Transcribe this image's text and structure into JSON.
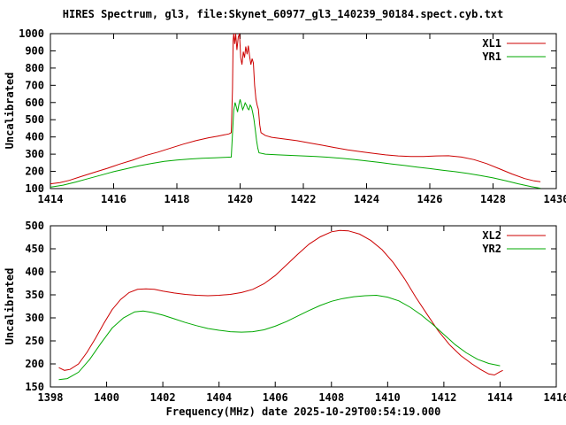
{
  "title": "HIRES Spectrum, gl3, file:Skynet_60977_gl3_140239_90184.spect.cyb.txt",
  "xlabel": "Frequency(MHz) date 2025-10-29T00:54:19.000",
  "chart_data": [
    {
      "type": "line",
      "ylabel": "Uncalibrated",
      "xlim": [
        1414,
        1430
      ],
      "ylim": [
        100,
        1000
      ],
      "xticks": [
        1414,
        1416,
        1418,
        1420,
        1422,
        1424,
        1426,
        1428,
        1430
      ],
      "yticks": [
        100,
        200,
        300,
        400,
        500,
        600,
        700,
        800,
        900,
        1000
      ],
      "grid": false,
      "legend_position": "top-right",
      "series": [
        {
          "name": "XL1",
          "color": "#cc0000",
          "points": [
            [
              1414.0,
              128
            ],
            [
              1414.3,
              135
            ],
            [
              1414.6,
              148
            ],
            [
              1415.0,
              172
            ],
            [
              1415.4,
              195
            ],
            [
              1415.8,
              218
            ],
            [
              1416.2,
              243
            ],
            [
              1416.6,
              265
            ],
            [
              1417.0,
              292
            ],
            [
              1417.4,
              312
            ],
            [
              1417.8,
              335
            ],
            [
              1418.2,
              358
            ],
            [
              1418.6,
              378
            ],
            [
              1419.0,
              395
            ],
            [
              1419.3,
              405
            ],
            [
              1419.5,
              412
            ],
            [
              1419.65,
              418
            ],
            [
              1419.72,
              425
            ],
            [
              1419.76,
              680
            ],
            [
              1419.78,
              960
            ],
            [
              1419.8,
              1000
            ],
            [
              1419.83,
              940
            ],
            [
              1419.86,
              1000
            ],
            [
              1419.9,
              905
            ],
            [
              1419.94,
              980
            ],
            [
              1419.98,
              1000
            ],
            [
              1420.02,
              860
            ],
            [
              1420.06,
              820
            ],
            [
              1420.1,
              895
            ],
            [
              1420.14,
              860
            ],
            [
              1420.18,
              925
            ],
            [
              1420.22,
              880
            ],
            [
              1420.26,
              930
            ],
            [
              1420.3,
              870
            ],
            [
              1420.34,
              820
            ],
            [
              1420.38,
              855
            ],
            [
              1420.42,
              830
            ],
            [
              1420.46,
              700
            ],
            [
              1420.5,
              620
            ],
            [
              1420.54,
              585
            ],
            [
              1420.58,
              560
            ],
            [
              1420.62,
              470
            ],
            [
              1420.66,
              425
            ],
            [
              1420.8,
              408
            ],
            [
              1421.0,
              398
            ],
            [
              1421.4,
              388
            ],
            [
              1421.8,
              378
            ],
            [
              1422.2,
              365
            ],
            [
              1422.6,
              352
            ],
            [
              1423.0,
              338
            ],
            [
              1423.4,
              325
            ],
            [
              1423.8,
              315
            ],
            [
              1424.2,
              305
            ],
            [
              1424.6,
              296
            ],
            [
              1425.0,
              290
            ],
            [
              1425.4,
              286
            ],
            [
              1425.8,
              286
            ],
            [
              1426.2,
              290
            ],
            [
              1426.6,
              291
            ],
            [
              1427.0,
              283
            ],
            [
              1427.4,
              268
            ],
            [
              1427.8,
              245
            ],
            [
              1428.2,
              215
            ],
            [
              1428.6,
              185
            ],
            [
              1429.0,
              158
            ],
            [
              1429.3,
              145
            ],
            [
              1429.5,
              140
            ]
          ]
        },
        {
          "name": "YR1",
          "color": "#00a800",
          "points": [
            [
              1414.0,
              108
            ],
            [
              1414.4,
              120
            ],
            [
              1414.8,
              138
            ],
            [
              1415.2,
              158
            ],
            [
              1415.6,
              178
            ],
            [
              1416.0,
              198
            ],
            [
              1416.4,
              215
            ],
            [
              1416.8,
              232
            ],
            [
              1417.2,
              246
            ],
            [
              1417.6,
              258
            ],
            [
              1418.0,
              266
            ],
            [
              1418.4,
              272
            ],
            [
              1418.8,
              276
            ],
            [
              1419.2,
              279
            ],
            [
              1419.5,
              281
            ],
            [
              1419.72,
              283
            ],
            [
              1419.76,
              420
            ],
            [
              1419.8,
              555
            ],
            [
              1419.84,
              600
            ],
            [
              1419.88,
              575
            ],
            [
              1419.92,
              545
            ],
            [
              1419.96,
              588
            ],
            [
              1420.0,
              618
            ],
            [
              1420.04,
              590
            ],
            [
              1420.08,
              558
            ],
            [
              1420.12,
              575
            ],
            [
              1420.16,
              598
            ],
            [
              1420.2,
              585
            ],
            [
              1420.24,
              565
            ],
            [
              1420.28,
              558
            ],
            [
              1420.32,
              585
            ],
            [
              1420.36,
              572
            ],
            [
              1420.4,
              540
            ],
            [
              1420.44,
              500
            ],
            [
              1420.48,
              440
            ],
            [
              1420.52,
              380
            ],
            [
              1420.56,
              335
            ],
            [
              1420.6,
              308
            ],
            [
              1420.8,
              300
            ],
            [
              1421.2,
              296
            ],
            [
              1421.6,
              293
            ],
            [
              1422.0,
              290
            ],
            [
              1422.4,
              286
            ],
            [
              1422.8,
              282
            ],
            [
              1423.2,
              276
            ],
            [
              1423.6,
              269
            ],
            [
              1424.0,
              261
            ],
            [
              1424.4,
              252
            ],
            [
              1424.8,
              243
            ],
            [
              1425.2,
              234
            ],
            [
              1425.6,
              225
            ],
            [
              1426.0,
              216
            ],
            [
              1426.4,
              207
            ],
            [
              1426.8,
              198
            ],
            [
              1427.2,
              188
            ],
            [
              1427.6,
              176
            ],
            [
              1428.0,
              162
            ],
            [
              1428.4,
              146
            ],
            [
              1428.8,
              128
            ],
            [
              1429.2,
              112
            ],
            [
              1429.5,
              102
            ]
          ]
        }
      ]
    },
    {
      "type": "line",
      "ylabel": "Uncalibrated",
      "xlim": [
        1398,
        1416
      ],
      "ylim": [
        150,
        500
      ],
      "xticks": [
        1398,
        1400,
        1402,
        1404,
        1406,
        1408,
        1410,
        1412,
        1414,
        1416
      ],
      "yticks": [
        150,
        200,
        250,
        300,
        350,
        400,
        450,
        500
      ],
      "grid": false,
      "legend_position": "top-right",
      "series": [
        {
          "name": "XL2",
          "color": "#cc0000",
          "points": [
            [
              1398.3,
              192
            ],
            [
              1398.5,
              186
            ],
            [
              1398.7,
              188
            ],
            [
              1399.0,
              200
            ],
            [
              1399.3,
              225
            ],
            [
              1399.6,
              255
            ],
            [
              1399.9,
              288
            ],
            [
              1400.2,
              318
            ],
            [
              1400.5,
              340
            ],
            [
              1400.8,
              355
            ],
            [
              1401.1,
              362
            ],
            [
              1401.4,
              363
            ],
            [
              1401.7,
              362
            ],
            [
              1402.0,
              358
            ],
            [
              1402.4,
              354
            ],
            [
              1402.8,
              351
            ],
            [
              1403.2,
              349
            ],
            [
              1403.6,
              348
            ],
            [
              1404.0,
              349
            ],
            [
              1404.4,
              351
            ],
            [
              1404.8,
              355
            ],
            [
              1405.2,
              362
            ],
            [
              1405.6,
              374
            ],
            [
              1406.0,
              392
            ],
            [
              1406.4,
              415
            ],
            [
              1406.8,
              438
            ],
            [
              1407.2,
              460
            ],
            [
              1407.6,
              476
            ],
            [
              1408.0,
              487
            ],
            [
              1408.3,
              490
            ],
            [
              1408.6,
              489
            ],
            [
              1409.0,
              482
            ],
            [
              1409.4,
              468
            ],
            [
              1409.8,
              448
            ],
            [
              1410.2,
              420
            ],
            [
              1410.6,
              385
            ],
            [
              1411.0,
              345
            ],
            [
              1411.4,
              308
            ],
            [
              1411.8,
              272
            ],
            [
              1412.2,
              242
            ],
            [
              1412.6,
              218
            ],
            [
              1413.0,
              200
            ],
            [
              1413.3,
              188
            ],
            [
              1413.6,
              178
            ],
            [
              1413.8,
              176
            ],
            [
              1414.0,
              183
            ],
            [
              1414.1,
              186
            ]
          ]
        },
        {
          "name": "YR2",
          "color": "#00a800",
          "points": [
            [
              1398.3,
              166
            ],
            [
              1398.6,
              168
            ],
            [
              1399.0,
              182
            ],
            [
              1399.4,
              210
            ],
            [
              1399.8,
              245
            ],
            [
              1400.2,
              278
            ],
            [
              1400.6,
              300
            ],
            [
              1401.0,
              313
            ],
            [
              1401.3,
              315
            ],
            [
              1401.6,
              312
            ],
            [
              1402.0,
              306
            ],
            [
              1402.4,
              298
            ],
            [
              1402.8,
              290
            ],
            [
              1403.2,
              283
            ],
            [
              1403.6,
              277
            ],
            [
              1404.0,
              273
            ],
            [
              1404.4,
              270
            ],
            [
              1404.8,
              269
            ],
            [
              1405.2,
              270
            ],
            [
              1405.6,
              274
            ],
            [
              1406.0,
              282
            ],
            [
              1406.4,
              292
            ],
            [
              1406.8,
              304
            ],
            [
              1407.2,
              316
            ],
            [
              1407.6,
              327
            ],
            [
              1408.0,
              336
            ],
            [
              1408.4,
              342
            ],
            [
              1408.8,
              346
            ],
            [
              1409.2,
              348
            ],
            [
              1409.6,
              349
            ],
            [
              1410.0,
              345
            ],
            [
              1410.4,
              337
            ],
            [
              1410.8,
              323
            ],
            [
              1411.2,
              306
            ],
            [
              1411.6,
              286
            ],
            [
              1412.0,
              264
            ],
            [
              1412.4,
              242
            ],
            [
              1412.8,
              224
            ],
            [
              1413.2,
              210
            ],
            [
              1413.6,
              201
            ],
            [
              1414.0,
              196
            ]
          ]
        }
      ]
    }
  ]
}
